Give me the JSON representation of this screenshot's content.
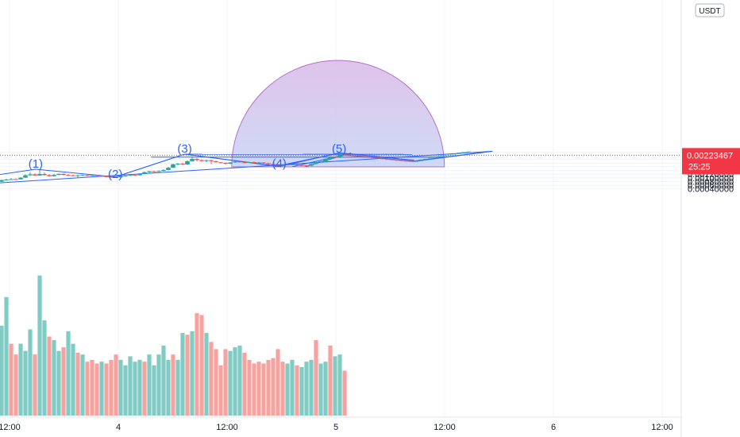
{
  "chart_data": {
    "type": "candlestick",
    "currency": "USDT",
    "ylim": [
      0.0002,
      0.0025
    ],
    "price_ticks": [
      "0.00240000",
      "0.00220000",
      "0.00200000",
      "0.00180000",
      "0.00160000",
      "0.00140000",
      "0.00120000",
      "0.00100000",
      "0.00080000",
      "0.00060000",
      "0.00040000"
    ],
    "price_tick_values": [
      0.0024,
      0.0022,
      0.002,
      0.0018,
      0.0016,
      0.0014,
      0.0012,
      0.001,
      0.0008,
      0.0006,
      0.0004
    ],
    "time_ticks": [
      {
        "label": "12:00",
        "t": 0.5
      },
      {
        "label": "4",
        "t": 1.0
      },
      {
        "label": "12:00",
        "t": 1.5
      },
      {
        "label": "5",
        "t": 2.0
      },
      {
        "label": "12:00",
        "t": 2.5
      },
      {
        "label": "6",
        "t": 3.0
      },
      {
        "label": "12:00",
        "t": 3.5
      }
    ],
    "current_price": {
      "label": "0.00223467",
      "value": 0.00223467,
      "countdown": "25:25",
      "color": "#f23645"
    },
    "wave_labels": [
      {
        "text": "(1)",
        "t": 0.62,
        "price": 0.00156
      },
      {
        "text": "(2)",
        "t": 0.986,
        "price": 0.000995
      },
      {
        "text": "(3)",
        "t": 1.305,
        "price": 0.00239
      },
      {
        "text": "(4)",
        "t": 1.74,
        "price": 0.00157
      },
      {
        "text": "(5)",
        "t": 2.015,
        "price": 0.00237
      }
    ],
    "colors": {
      "up": "#26a69a",
      "down": "#ef5350",
      "volume_up": "#80cbc4",
      "volume_down": "#f6a3a0",
      "line": "#2962ff",
      "arc_fill": "#c9b3e8",
      "arc_stroke": "#8e24aa"
    },
    "candles": [
      [
        0.4636,
        0.00079,
        0.00088,
        0.00078,
        0.0009,
        "u"
      ],
      [
        0.4855,
        0.00088,
        0.00091,
        0.00087,
        0.00095,
        "u"
      ],
      [
        0.5073,
        0.00091,
        0.00093,
        0.0009,
        0.00099,
        "u"
      ],
      [
        0.5292,
        0.00093,
        0.00092,
        0.0009,
        0.00097,
        "d"
      ],
      [
        0.5511,
        0.00092,
        0.00101,
        0.00091,
        0.00104,
        "u"
      ],
      [
        0.573,
        0.00101,
        0.00114,
        0.001,
        0.0012,
        "u"
      ],
      [
        0.5949,
        0.00114,
        0.00119,
        0.0011,
        0.0013,
        "u"
      ],
      [
        0.6168,
        0.00119,
        0.00113,
        0.00111,
        0.00125,
        "d"
      ],
      [
        0.6387,
        0.00113,
        0.00121,
        0.00112,
        0.00148,
        "u"
      ],
      [
        0.6606,
        0.00121,
        0.00115,
        0.00113,
        0.0013,
        "d"
      ],
      [
        0.6825,
        0.00115,
        0.00109,
        0.00106,
        0.0012,
        "d"
      ],
      [
        0.7044,
        0.00109,
        0.00116,
        0.00107,
        0.00122,
        "u"
      ],
      [
        0.7263,
        0.00116,
        0.00122,
        0.00114,
        0.00124,
        "u"
      ],
      [
        0.7482,
        0.00122,
        0.00116,
        0.00113,
        0.00124,
        "d"
      ],
      [
        0.7701,
        0.00116,
        0.00114,
        0.00111,
        0.0012,
        "d"
      ],
      [
        0.792,
        0.00114,
        0.00111,
        0.00108,
        0.00117,
        "d"
      ],
      [
        0.8139,
        0.00111,
        0.00114,
        0.00102,
        0.00116,
        "u"
      ],
      [
        0.8358,
        0.00114,
        0.00115,
        0.0011,
        0.00118,
        "u"
      ],
      [
        0.8577,
        0.00115,
        0.00112,
        0.00109,
        0.00117,
        "d"
      ],
      [
        0.8796,
        0.00112,
        0.00115,
        0.0011,
        0.00117,
        "u"
      ],
      [
        0.9015,
        0.00115,
        0.00112,
        0.00109,
        0.00116,
        "d"
      ],
      [
        0.9234,
        0.00112,
        0.00109,
        0.00107,
        0.00114,
        "d"
      ],
      [
        0.9453,
        0.00109,
        0.00106,
        0.00104,
        0.00111,
        "d"
      ],
      [
        0.9672,
        0.00106,
        0.00104,
        0.00101,
        0.00107,
        "d"
      ],
      [
        0.9891,
        0.00104,
        0.00103,
        0.001,
        0.00106,
        "d"
      ],
      [
        1.0109,
        0.00103,
        0.0011,
        0.00102,
        0.00112,
        "u"
      ],
      [
        1.0328,
        0.0011,
        0.00112,
        0.00107,
        0.00119,
        "u"
      ],
      [
        1.0547,
        0.00112,
        0.00116,
        0.0011,
        0.00121,
        "u"
      ],
      [
        1.0766,
        0.00116,
        0.00114,
        0.00111,
        0.00118,
        "d"
      ],
      [
        1.0985,
        0.00114,
        0.00121,
        0.00113,
        0.00125,
        "u"
      ],
      [
        1.1204,
        0.00121,
        0.00131,
        0.0012,
        0.00135,
        "u"
      ],
      [
        1.1423,
        0.00131,
        0.00136,
        0.00128,
        0.00139,
        "u"
      ],
      [
        1.1642,
        0.00136,
        0.00133,
        0.0013,
        0.00138,
        "d"
      ],
      [
        1.1861,
        0.00133,
        0.00137,
        0.00131,
        0.00141,
        "u"
      ],
      [
        1.208,
        0.00137,
        0.00143,
        0.00135,
        0.00146,
        "u"
      ],
      [
        1.2299,
        0.00143,
        0.00155,
        0.00141,
        0.0016,
        "u"
      ],
      [
        1.2518,
        0.00155,
        0.00174,
        0.00153,
        0.00178,
        "u"
      ],
      [
        1.2737,
        0.00174,
        0.00177,
        0.00168,
        0.0018,
        "u"
      ],
      [
        1.2956,
        0.00177,
        0.00173,
        0.0017,
        0.00182,
        "d"
      ],
      [
        1.3175,
        0.00173,
        0.00191,
        0.0017,
        0.00195,
        "u"
      ],
      [
        1.3394,
        0.00191,
        0.00203,
        0.00188,
        0.00218,
        "u"
      ],
      [
        1.3613,
        0.00203,
        0.00197,
        0.0019,
        0.00208,
        "d"
      ],
      [
        1.3832,
        0.00197,
        0.00192,
        0.00188,
        0.002,
        "d"
      ],
      [
        1.4051,
        0.00192,
        0.00196,
        0.00185,
        0.00199,
        "u"
      ],
      [
        1.427,
        0.00196,
        0.00191,
        0.00175,
        0.00199,
        "d"
      ],
      [
        1.4489,
        0.00191,
        0.00185,
        0.00183,
        0.00193,
        "d"
      ],
      [
        1.4708,
        0.00185,
        0.00182,
        0.00179,
        0.00187,
        "d"
      ],
      [
        1.4927,
        0.00182,
        0.00177,
        0.00173,
        0.00184,
        "d"
      ],
      [
        1.5146,
        0.00177,
        0.00184,
        0.00175,
        0.00187,
        "u"
      ],
      [
        1.5365,
        0.00184,
        0.00189,
        0.00182,
        0.00191,
        "u"
      ],
      [
        1.5584,
        0.00189,
        0.00185,
        0.00183,
        0.00191,
        "d"
      ],
      [
        1.5803,
        0.00185,
        0.00183,
        0.00181,
        0.00188,
        "d"
      ],
      [
        1.6022,
        0.00183,
        0.00186,
        0.00181,
        0.00188,
        "u"
      ],
      [
        1.6241,
        0.00186,
        0.00182,
        0.0018,
        0.00188,
        "d"
      ],
      [
        1.646,
        0.00182,
        0.00184,
        0.00181,
        0.00186,
        "u"
      ],
      [
        1.6679,
        0.00184,
        0.0018,
        0.00177,
        0.00186,
        "d"
      ],
      [
        1.6898,
        0.0018,
        0.00176,
        0.00173,
        0.00183,
        "d"
      ],
      [
        1.7117,
        0.00176,
        0.00172,
        0.00169,
        0.00178,
        "d"
      ],
      [
        1.7336,
        0.00172,
        0.00168,
        0.00165,
        0.00174,
        "d"
      ],
      [
        1.7555,
        0.00168,
        0.00173,
        0.00163,
        0.00175,
        "u"
      ],
      [
        1.7774,
        0.00173,
        0.00171,
        0.00167,
        0.00175,
        "d"
      ],
      [
        1.7993,
        0.00171,
        0.00174,
        0.00169,
        0.00176,
        "u"
      ],
      [
        1.8212,
        0.00174,
        0.0017,
        0.00166,
        0.00176,
        "d"
      ],
      [
        1.8431,
        0.0017,
        0.00168,
        0.00165,
        0.00172,
        "d"
      ],
      [
        1.865,
        0.00168,
        0.00166,
        0.00162,
        0.0017,
        "d"
      ],
      [
        1.8869,
        0.00166,
        0.00176,
        0.00164,
        0.00178,
        "u"
      ],
      [
        1.9088,
        0.00176,
        0.00186,
        0.00174,
        0.0019,
        "u"
      ],
      [
        1.9307,
        0.00186,
        0.0019,
        0.00183,
        0.00193,
        "u"
      ],
      [
        1.9526,
        0.0019,
        0.00204,
        0.00188,
        0.00206,
        "u"
      ],
      [
        1.9745,
        0.00204,
        0.00215,
        0.00198,
        0.00218,
        "u"
      ],
      [
        1.9964,
        0.00215,
        0.0021,
        0.00206,
        0.00218,
        "d"
      ],
      [
        2.0183,
        0.0021,
        0.00228,
        0.00208,
        0.00236,
        "u"
      ],
      [
        2.0402,
        0.00228,
        0.00226,
        0.00222,
        0.00233,
        "d"
      ]
    ],
    "ghost_candles": [
      [
        2.0621,
        0.002255,
        0.00223
      ],
      [
        2.084,
        0.00224,
        0.00221
      ],
      [
        2.1059,
        0.00221,
        0.00219
      ],
      [
        2.1278,
        0.00219,
        0.00216
      ],
      [
        2.1497,
        0.00216,
        0.00213
      ],
      [
        2.1716,
        0.00213,
        0.0021
      ],
      [
        2.1935,
        0.0021,
        0.00207
      ],
      [
        2.2154,
        0.00207,
        0.00204
      ],
      [
        2.2373,
        0.00204,
        0.00201
      ],
      [
        2.2592,
        0.00201,
        0.00198
      ],
      [
        2.2811,
        0.00198,
        0.00196
      ],
      [
        2.303,
        0.00196,
        0.00194
      ],
      [
        2.3249,
        0.00194,
        0.00192
      ],
      [
        2.3468,
        0.00192,
        0.0019
      ],
      [
        2.3687,
        0.0019,
        0.00193
      ],
      [
        2.3906,
        0.00193,
        0.00198
      ],
      [
        2.4125,
        0.00198,
        0.00203
      ],
      [
        2.4344,
        0.00203,
        0.00208
      ],
      [
        2.4563,
        0.00208,
        0.00213
      ],
      [
        2.4782,
        0.00213,
        0.00218
      ],
      [
        2.5001,
        0.00218,
        0.00223
      ],
      [
        2.522,
        0.00223,
        0.00228
      ],
      [
        2.5439,
        0.00228,
        0.00232
      ],
      [
        2.5658,
        0.00232,
        0.00236
      ],
      [
        2.5877,
        0.00236,
        0.0024
      ],
      [
        2.6096,
        0.0024,
        0.00243
      ]
    ],
    "volumes": [
      [
        0.4636,
        0.0005,
        "u"
      ],
      [
        0.4855,
        0.00066,
        "u"
      ],
      [
        0.5073,
        0.0004,
        "d"
      ],
      [
        0.5292,
        0.00034,
        "d"
      ],
      [
        0.5511,
        0.0004,
        "u"
      ],
      [
        0.573,
        0.00036,
        "u"
      ],
      [
        0.5949,
        0.00048,
        "u"
      ],
      [
        0.6168,
        0.00034,
        "d"
      ],
      [
        0.6387,
        0.00078,
        "u"
      ],
      [
        0.6606,
        0.00053,
        "u"
      ],
      [
        0.6825,
        0.00044,
        "d"
      ],
      [
        0.7044,
        0.00042,
        "u"
      ],
      [
        0.7263,
        0.00036,
        "u"
      ],
      [
        0.7482,
        0.00038,
        "d"
      ],
      [
        0.7701,
        0.00047,
        "u"
      ],
      [
        0.792,
        0.0004,
        "u"
      ],
      [
        0.8139,
        0.00035,
        "d"
      ],
      [
        0.8358,
        0.00034,
        "u"
      ],
      [
        0.8577,
        0.0003,
        "d"
      ],
      [
        0.8796,
        0.00031,
        "d"
      ],
      [
        0.9015,
        0.00029,
        "d"
      ],
      [
        0.9234,
        0.0003,
        "u"
      ],
      [
        0.9453,
        0.00029,
        "d"
      ],
      [
        0.9672,
        0.00031,
        "d"
      ],
      [
        0.9891,
        0.00034,
        "d"
      ],
      [
        1.0109,
        0.00031,
        "u"
      ],
      [
        1.0328,
        0.00028,
        "u"
      ],
      [
        1.0547,
        0.00033,
        "u"
      ],
      [
        1.0766,
        0.0003,
        "u"
      ],
      [
        1.0985,
        0.00031,
        "u"
      ],
      [
        1.1204,
        0.0003,
        "d"
      ],
      [
        1.1423,
        0.00034,
        "u"
      ],
      [
        1.1642,
        0.00028,
        "u"
      ],
      [
        1.1861,
        0.00034,
        "u"
      ],
      [
        1.208,
        0.00039,
        "u"
      ],
      [
        1.2299,
        0.00031,
        "u"
      ],
      [
        1.2518,
        0.00034,
        "d"
      ],
      [
        1.2737,
        0.00031,
        "u"
      ],
      [
        1.2956,
        0.00046,
        "u"
      ],
      [
        1.3175,
        0.00045,
        "d"
      ],
      [
        1.3394,
        0.00047,
        "u"
      ],
      [
        1.3613,
        0.00057,
        "d"
      ],
      [
        1.3832,
        0.00056,
        "d"
      ],
      [
        1.4051,
        0.00046,
        "u"
      ],
      [
        1.427,
        0.00041,
        "d"
      ],
      [
        1.4489,
        0.00037,
        "d"
      ],
      [
        1.4708,
        0.00028,
        "d"
      ],
      [
        1.4927,
        0.00037,
        "d"
      ],
      [
        1.5146,
        0.00036,
        "u"
      ],
      [
        1.5365,
        0.00038,
        "u"
      ],
      [
        1.5584,
        0.00039,
        "u"
      ],
      [
        1.5803,
        0.00035,
        "d"
      ],
      [
        1.6022,
        0.00031,
        "d"
      ],
      [
        1.6241,
        0.00029,
        "d"
      ],
      [
        1.646,
        0.0003,
        "d"
      ],
      [
        1.6679,
        0.00029,
        "d"
      ],
      [
        1.6898,
        0.00031,
        "d"
      ],
      [
        1.7117,
        0.00032,
        "d"
      ],
      [
        1.7336,
        0.00037,
        "d"
      ],
      [
        1.7555,
        0.0003,
        "d"
      ],
      [
        1.7774,
        0.00029,
        "u"
      ],
      [
        1.7993,
        0.00031,
        "u"
      ],
      [
        1.8212,
        0.00028,
        "d"
      ],
      [
        1.8431,
        0.00027,
        "u"
      ],
      [
        1.865,
        0.0003,
        "u"
      ],
      [
        1.8869,
        0.00031,
        "u"
      ],
      [
        1.9088,
        0.00042,
        "d"
      ],
      [
        1.9307,
        0.00029,
        "u"
      ],
      [
        1.9526,
        0.0003,
        "u"
      ],
      [
        1.9745,
        0.00039,
        "d"
      ],
      [
        1.9964,
        0.00033,
        "u"
      ],
      [
        2.0183,
        0.00034,
        "u"
      ],
      [
        2.0402,
        0.00025,
        "d"
      ]
    ]
  }
}
